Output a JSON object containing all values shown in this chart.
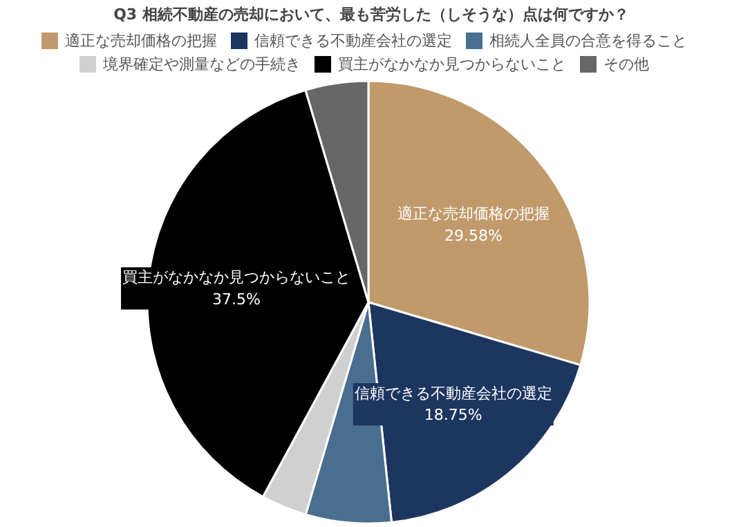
{
  "chart_data": {
    "type": "pie",
    "title": "Q3 相続不動産の売却において、最も苦労した（しそうな）点は何ですか？",
    "categories": [
      "適正な売却価格の把握",
      "信頼できる不動産会社の選定",
      "相続人全員の合意を得ること",
      "境界確定や測量などの手続き",
      "買主がなかなか見つからないこと",
      "その他"
    ],
    "values": [
      29.58,
      18.75,
      6.25,
      3.33,
      37.5,
      4.59
    ],
    "colors": [
      "#c09a6b",
      "#1d3660",
      "#4a6e90",
      "#d0d0d0",
      "#000000",
      "#666666"
    ],
    "value_labels": [
      "29.58%",
      "18.75%",
      null,
      null,
      "37.5%",
      null
    ],
    "legend": "top"
  }
}
